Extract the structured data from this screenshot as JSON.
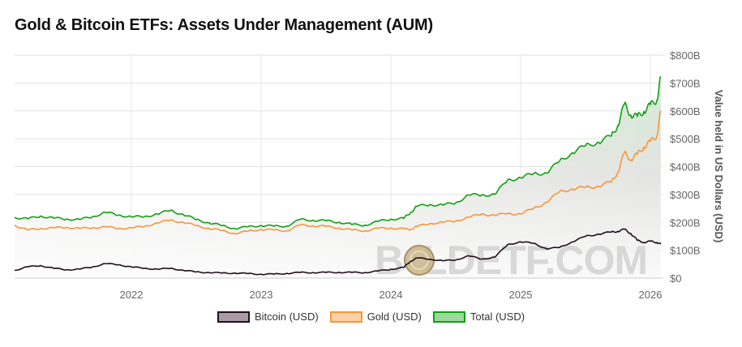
{
  "title": "Gold & Bitcoin ETFs: Assets Under Management (AUM)",
  "watermark": "BOLDETF.COM",
  "chart_data": {
    "type": "line",
    "title": "Gold & Bitcoin ETFs: Assets Under Management (AUM)",
    "xlabel": "",
    "ylabel": "Value held in US Dollars (USD)",
    "xlim": [
      2021.1,
      2026.1
    ],
    "ylim": [
      0,
      800
    ],
    "x_ticks": [
      2022,
      2023,
      2024,
      2025,
      2026
    ],
    "x_tick_labels": [
      "2022",
      "2023",
      "2024",
      "2025",
      "2026"
    ],
    "y_ticks": [
      0,
      100,
      200,
      300,
      400,
      500,
      600,
      700,
      800
    ],
    "y_tick_labels": [
      "$0",
      "$100B",
      "$200B",
      "$300B",
      "$400B",
      "$500B",
      "$600B",
      "$700B",
      "$800B"
    ],
    "grid": true,
    "legend": "bottom",
    "x": [
      2021.1,
      2021.2,
      2021.3,
      2021.4,
      2021.5,
      2021.6,
      2021.7,
      2021.8,
      2021.9,
      2022.0,
      2022.1,
      2022.2,
      2022.3,
      2022.4,
      2022.5,
      2022.6,
      2022.7,
      2022.8,
      2022.9,
      2023.0,
      2023.1,
      2023.2,
      2023.3,
      2023.4,
      2023.5,
      2023.6,
      2023.7,
      2023.8,
      2023.9,
      2024.0,
      2024.1,
      2024.15,
      2024.2,
      2024.3,
      2024.4,
      2024.5,
      2024.6,
      2024.7,
      2024.8,
      2024.9,
      2025.0,
      2025.1,
      2025.2,
      2025.3,
      2025.4,
      2025.5,
      2025.6,
      2025.7,
      2025.75,
      2025.8,
      2025.85,
      2025.9,
      2025.95,
      2026.0,
      2026.05,
      2026.08
    ],
    "series": [
      {
        "name": "Bitcoin (USD)",
        "color": "#1e0f1c",
        "values": [
          28,
          40,
          45,
          35,
          30,
          32,
          40,
          52,
          48,
          40,
          35,
          32,
          35,
          28,
          22,
          20,
          18,
          18,
          16,
          14,
          14,
          17,
          20,
          20,
          20,
          21,
          20,
          20,
          25,
          32,
          38,
          60,
          72,
          68,
          62,
          65,
          80,
          68,
          75,
          120,
          130,
          125,
          105,
          110,
          130,
          150,
          158,
          165,
          168,
          175,
          160,
          135,
          128,
          132,
          128,
          122
        ]
      },
      {
        "name": "Gold (USD)",
        "color": "#f7963a",
        "values": [
          190,
          172,
          178,
          180,
          182,
          178,
          180,
          184,
          178,
          180,
          185,
          198,
          208,
          200,
          188,
          178,
          170,
          160,
          168,
          175,
          172,
          170,
          190,
          188,
          185,
          180,
          172,
          170,
          178,
          180,
          176,
          175,
          185,
          196,
          200,
          205,
          218,
          230,
          225,
          232,
          230,
          250,
          272,
          310,
          320,
          325,
          330,
          345,
          380,
          450,
          425,
          445,
          470,
          490,
          510,
          600
        ]
      },
      {
        "name": "Total (USD)",
        "color": "#12a012",
        "values": [
          218,
          212,
          223,
          215,
          212,
          210,
          220,
          236,
          226,
          220,
          220,
          230,
          243,
          228,
          210,
          198,
          188,
          178,
          184,
          189,
          186,
          187,
          210,
          208,
          205,
          201,
          192,
          190,
          203,
          212,
          214,
          235,
          257,
          264,
          262,
          270,
          298,
          298,
          300,
          352,
          360,
          375,
          377,
          420,
          450,
          475,
          488,
          510,
          548,
          625,
          585,
          580,
          598,
          622,
          638,
          722
        ]
      }
    ]
  }
}
